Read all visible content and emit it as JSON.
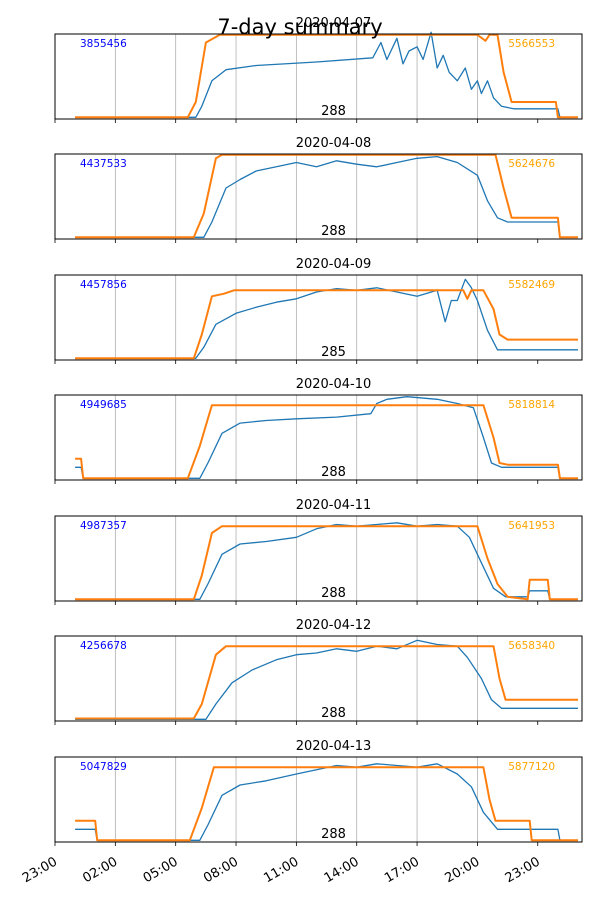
{
  "figure": {
    "title": "7-day summary"
  },
  "colors": {
    "blue": "#1f77b4",
    "orange": "#ff7f0e",
    "left_annot": "#0000ff",
    "right_annot": "#ffa500",
    "grid": "#b0b0b0"
  },
  "chart_data": {
    "type": "line",
    "title": "7-day summary",
    "x_tick_labels": [
      "23:00",
      "02:00",
      "05:00",
      "08:00",
      "11:00",
      "14:00",
      "17:00",
      "20:00",
      "23:00"
    ],
    "x_ticks_hours": [
      -1,
      2,
      5,
      8,
      11,
      14,
      17,
      20,
      23
    ],
    "xlim_hours": [
      -1,
      25.2
    ],
    "grid": "x",
    "series_colors": [
      "#1f77b4",
      "#ff7f0e"
    ],
    "panels": [
      {
        "title": "2020-04-07",
        "left_value": "3855456",
        "right_value": "5566553",
        "count": "288",
        "orange": [
          [
            0,
            0.02
          ],
          [
            5.6,
            0.02
          ],
          [
            6.0,
            0.2
          ],
          [
            6.5,
            0.9
          ],
          [
            7.2,
            0.99
          ],
          [
            20.0,
            0.99
          ],
          [
            20.4,
            0.92
          ],
          [
            20.6,
            0.99
          ],
          [
            21.0,
            0.99
          ],
          [
            21.3,
            0.55
          ],
          [
            21.7,
            0.2
          ],
          [
            23.9,
            0.2
          ],
          [
            24.0,
            0.02
          ],
          [
            25.0,
            0.02
          ]
        ],
        "blue": [
          [
            0,
            0.02
          ],
          [
            6.0,
            0.02
          ],
          [
            6.3,
            0.15
          ],
          [
            6.8,
            0.45
          ],
          [
            7.5,
            0.58
          ],
          [
            9.0,
            0.63
          ],
          [
            12.0,
            0.67
          ],
          [
            14.8,
            0.72
          ],
          [
            15.2,
            0.9
          ],
          [
            15.5,
            0.7
          ],
          [
            16.0,
            0.95
          ],
          [
            16.3,
            0.65
          ],
          [
            16.6,
            0.8
          ],
          [
            17.0,
            0.85
          ],
          [
            17.3,
            0.7
          ],
          [
            17.7,
            1.02
          ],
          [
            18.0,
            0.6
          ],
          [
            18.3,
            0.75
          ],
          [
            18.6,
            0.55
          ],
          [
            19.0,
            0.45
          ],
          [
            19.4,
            0.6
          ],
          [
            19.7,
            0.35
          ],
          [
            20.0,
            0.45
          ],
          [
            20.2,
            0.3
          ],
          [
            20.5,
            0.45
          ],
          [
            20.8,
            0.25
          ],
          [
            21.2,
            0.15
          ],
          [
            21.8,
            0.12
          ],
          [
            24.0,
            0.12
          ],
          [
            24.1,
            0.02
          ],
          [
            25.0,
            0.02
          ]
        ]
      },
      {
        "title": "2020-04-08",
        "left_value": "4437533",
        "right_value": "5624676",
        "count": "288",
        "orange": [
          [
            0,
            0.02
          ],
          [
            5.9,
            0.02
          ],
          [
            6.4,
            0.3
          ],
          [
            7.0,
            0.95
          ],
          [
            7.3,
            0.99
          ],
          [
            20.9,
            0.99
          ],
          [
            21.3,
            0.6
          ],
          [
            21.7,
            0.25
          ],
          [
            24.0,
            0.25
          ],
          [
            24.1,
            0.02
          ],
          [
            25.0,
            0.02
          ]
        ],
        "blue": [
          [
            0,
            0.02
          ],
          [
            6.4,
            0.02
          ],
          [
            6.8,
            0.2
          ],
          [
            7.5,
            0.6
          ],
          [
            8.2,
            0.7
          ],
          [
            9.0,
            0.8
          ],
          [
            10.0,
            0.85
          ],
          [
            11.0,
            0.9
          ],
          [
            12.0,
            0.85
          ],
          [
            13.0,
            0.92
          ],
          [
            14.0,
            0.88
          ],
          [
            15.0,
            0.85
          ],
          [
            16.0,
            0.9
          ],
          [
            17.0,
            0.95
          ],
          [
            18.0,
            0.97
          ],
          [
            19.0,
            0.9
          ],
          [
            20.0,
            0.75
          ],
          [
            20.5,
            0.45
          ],
          [
            21.0,
            0.25
          ],
          [
            21.5,
            0.2
          ],
          [
            24.0,
            0.2
          ],
          [
            24.1,
            0.02
          ],
          [
            25.0,
            0.02
          ]
        ]
      },
      {
        "title": "2020-04-09",
        "left_value": "4457856",
        "right_value": "5582469",
        "count": "285",
        "orange": [
          [
            0,
            0.02
          ],
          [
            5.9,
            0.02
          ],
          [
            6.3,
            0.3
          ],
          [
            6.8,
            0.75
          ],
          [
            7.4,
            0.78
          ],
          [
            7.9,
            0.82
          ],
          [
            19.3,
            0.82
          ],
          [
            19.5,
            0.72
          ],
          [
            19.7,
            0.82
          ],
          [
            20.3,
            0.82
          ],
          [
            20.8,
            0.6
          ],
          [
            21.1,
            0.3
          ],
          [
            21.5,
            0.24
          ],
          [
            25.0,
            0.24
          ]
        ],
        "blue": [
          [
            0,
            0.02
          ],
          [
            6.0,
            0.02
          ],
          [
            6.4,
            0.15
          ],
          [
            7.0,
            0.42
          ],
          [
            8.0,
            0.55
          ],
          [
            9.0,
            0.62
          ],
          [
            10.0,
            0.68
          ],
          [
            11.0,
            0.72
          ],
          [
            12.0,
            0.8
          ],
          [
            13.0,
            0.84
          ],
          [
            14.0,
            0.82
          ],
          [
            15.0,
            0.85
          ],
          [
            16.0,
            0.8
          ],
          [
            17.0,
            0.75
          ],
          [
            18.0,
            0.82
          ],
          [
            18.4,
            0.45
          ],
          [
            18.7,
            0.7
          ],
          [
            19.0,
            0.7
          ],
          [
            19.4,
            0.95
          ],
          [
            19.7,
            0.85
          ],
          [
            20.0,
            0.7
          ],
          [
            20.5,
            0.35
          ],
          [
            21.0,
            0.12
          ],
          [
            21.5,
            0.12
          ],
          [
            25.0,
            0.12
          ]
        ]
      },
      {
        "title": "2020-04-10",
        "left_value": "4949685",
        "right_value": "5818814",
        "count": "288",
        "orange": [
          [
            0,
            0.25
          ],
          [
            0.3,
            0.25
          ],
          [
            0.4,
            0.02
          ],
          [
            5.6,
            0.02
          ],
          [
            6.2,
            0.4
          ],
          [
            6.8,
            0.88
          ],
          [
            7.3,
            0.88
          ],
          [
            20.3,
            0.88
          ],
          [
            20.8,
            0.5
          ],
          [
            21.1,
            0.2
          ],
          [
            21.5,
            0.18
          ],
          [
            24.0,
            0.18
          ],
          [
            24.1,
            0.02
          ],
          [
            25.0,
            0.02
          ]
        ],
        "blue": [
          [
            0,
            0.15
          ],
          [
            0.3,
            0.15
          ],
          [
            0.4,
            0.02
          ],
          [
            6.2,
            0.02
          ],
          [
            6.6,
            0.2
          ],
          [
            7.3,
            0.55
          ],
          [
            8.2,
            0.67
          ],
          [
            9.5,
            0.7
          ],
          [
            11.0,
            0.72
          ],
          [
            13.0,
            0.74
          ],
          [
            14.7,
            0.78
          ],
          [
            15.0,
            0.9
          ],
          [
            15.5,
            0.95
          ],
          [
            16.5,
            0.98
          ],
          [
            18.0,
            0.95
          ],
          [
            19.0,
            0.9
          ],
          [
            19.8,
            0.85
          ],
          [
            20.3,
            0.5
          ],
          [
            20.7,
            0.2
          ],
          [
            21.2,
            0.15
          ],
          [
            24.0,
            0.15
          ],
          [
            24.1,
            0.02
          ],
          [
            25.0,
            0.02
          ]
        ]
      },
      {
        "title": "2020-04-11",
        "left_value": "4987357",
        "right_value": "5641953",
        "count": "288",
        "orange": [
          [
            0,
            0.02
          ],
          [
            5.9,
            0.02
          ],
          [
            6.3,
            0.3
          ],
          [
            6.8,
            0.8
          ],
          [
            7.3,
            0.88
          ],
          [
            20.0,
            0.88
          ],
          [
            20.5,
            0.5
          ],
          [
            21.0,
            0.2
          ],
          [
            21.5,
            0.05
          ],
          [
            22.5,
            0.02
          ],
          [
            22.6,
            0.25
          ],
          [
            23.5,
            0.25
          ],
          [
            23.6,
            0.02
          ],
          [
            25.0,
            0.02
          ]
        ],
        "blue": [
          [
            0,
            0.02
          ],
          [
            6.2,
            0.02
          ],
          [
            6.6,
            0.2
          ],
          [
            7.3,
            0.55
          ],
          [
            8.2,
            0.67
          ],
          [
            9.5,
            0.7
          ],
          [
            11.0,
            0.75
          ],
          [
            12.0,
            0.85
          ],
          [
            13.0,
            0.9
          ],
          [
            14.0,
            0.88
          ],
          [
            15.0,
            0.9
          ],
          [
            16.0,
            0.92
          ],
          [
            17.0,
            0.88
          ],
          [
            18.0,
            0.9
          ],
          [
            19.0,
            0.88
          ],
          [
            19.6,
            0.75
          ],
          [
            20.2,
            0.45
          ],
          [
            20.8,
            0.15
          ],
          [
            21.4,
            0.05
          ],
          [
            22.5,
            0.05
          ],
          [
            22.6,
            0.12
          ],
          [
            23.5,
            0.12
          ],
          [
            23.6,
            0.02
          ],
          [
            25.0,
            0.02
          ]
        ]
      },
      {
        "title": "2020-04-12",
        "left_value": "4256678",
        "right_value": "5658340",
        "count": "288",
        "orange": [
          [
            0,
            0.03
          ],
          [
            5.9,
            0.03
          ],
          [
            6.3,
            0.2
          ],
          [
            7.0,
            0.78
          ],
          [
            7.5,
            0.88
          ],
          [
            20.8,
            0.88
          ],
          [
            21.1,
            0.5
          ],
          [
            21.4,
            0.25
          ],
          [
            25.0,
            0.25
          ]
        ],
        "blue": [
          [
            0,
            0.02
          ],
          [
            6.5,
            0.02
          ],
          [
            7.0,
            0.2
          ],
          [
            7.8,
            0.45
          ],
          [
            8.8,
            0.6
          ],
          [
            10.0,
            0.72
          ],
          [
            11.0,
            0.78
          ],
          [
            12.0,
            0.8
          ],
          [
            13.0,
            0.85
          ],
          [
            14.0,
            0.82
          ],
          [
            15.0,
            0.88
          ],
          [
            16.0,
            0.85
          ],
          [
            17.0,
            0.95
          ],
          [
            18.0,
            0.9
          ],
          [
            19.0,
            0.88
          ],
          [
            19.5,
            0.75
          ],
          [
            20.2,
            0.5
          ],
          [
            20.7,
            0.25
          ],
          [
            21.2,
            0.15
          ],
          [
            25.0,
            0.15
          ]
        ]
      },
      {
        "title": "2020-04-13",
        "left_value": "5047829",
        "right_value": "5877120",
        "count": "288",
        "orange": [
          [
            0,
            0.25
          ],
          [
            1.0,
            0.25
          ],
          [
            1.1,
            0.02
          ],
          [
            5.7,
            0.02
          ],
          [
            6.3,
            0.4
          ],
          [
            6.9,
            0.88
          ],
          [
            7.3,
            0.88
          ],
          [
            20.3,
            0.88
          ],
          [
            20.6,
            0.5
          ],
          [
            20.9,
            0.25
          ],
          [
            22.6,
            0.25
          ],
          [
            22.7,
            0.02
          ],
          [
            24.0,
            0.02
          ],
          [
            24.1,
            0.02
          ],
          [
            25.0,
            0.02
          ]
        ],
        "blue": [
          [
            0,
            0.15
          ],
          [
            1.0,
            0.15
          ],
          [
            1.1,
            0.02
          ],
          [
            6.2,
            0.02
          ],
          [
            6.6,
            0.2
          ],
          [
            7.3,
            0.55
          ],
          [
            8.2,
            0.67
          ],
          [
            9.5,
            0.72
          ],
          [
            11.0,
            0.8
          ],
          [
            12.0,
            0.85
          ],
          [
            13.0,
            0.9
          ],
          [
            14.0,
            0.88
          ],
          [
            15.0,
            0.92
          ],
          [
            16.0,
            0.9
          ],
          [
            17.0,
            0.88
          ],
          [
            18.0,
            0.92
          ],
          [
            19.0,
            0.8
          ],
          [
            19.7,
            0.65
          ],
          [
            20.3,
            0.35
          ],
          [
            21.0,
            0.15
          ],
          [
            24.0,
            0.15
          ],
          [
            24.1,
            0.02
          ],
          [
            25.0,
            0.02
          ]
        ]
      }
    ]
  }
}
